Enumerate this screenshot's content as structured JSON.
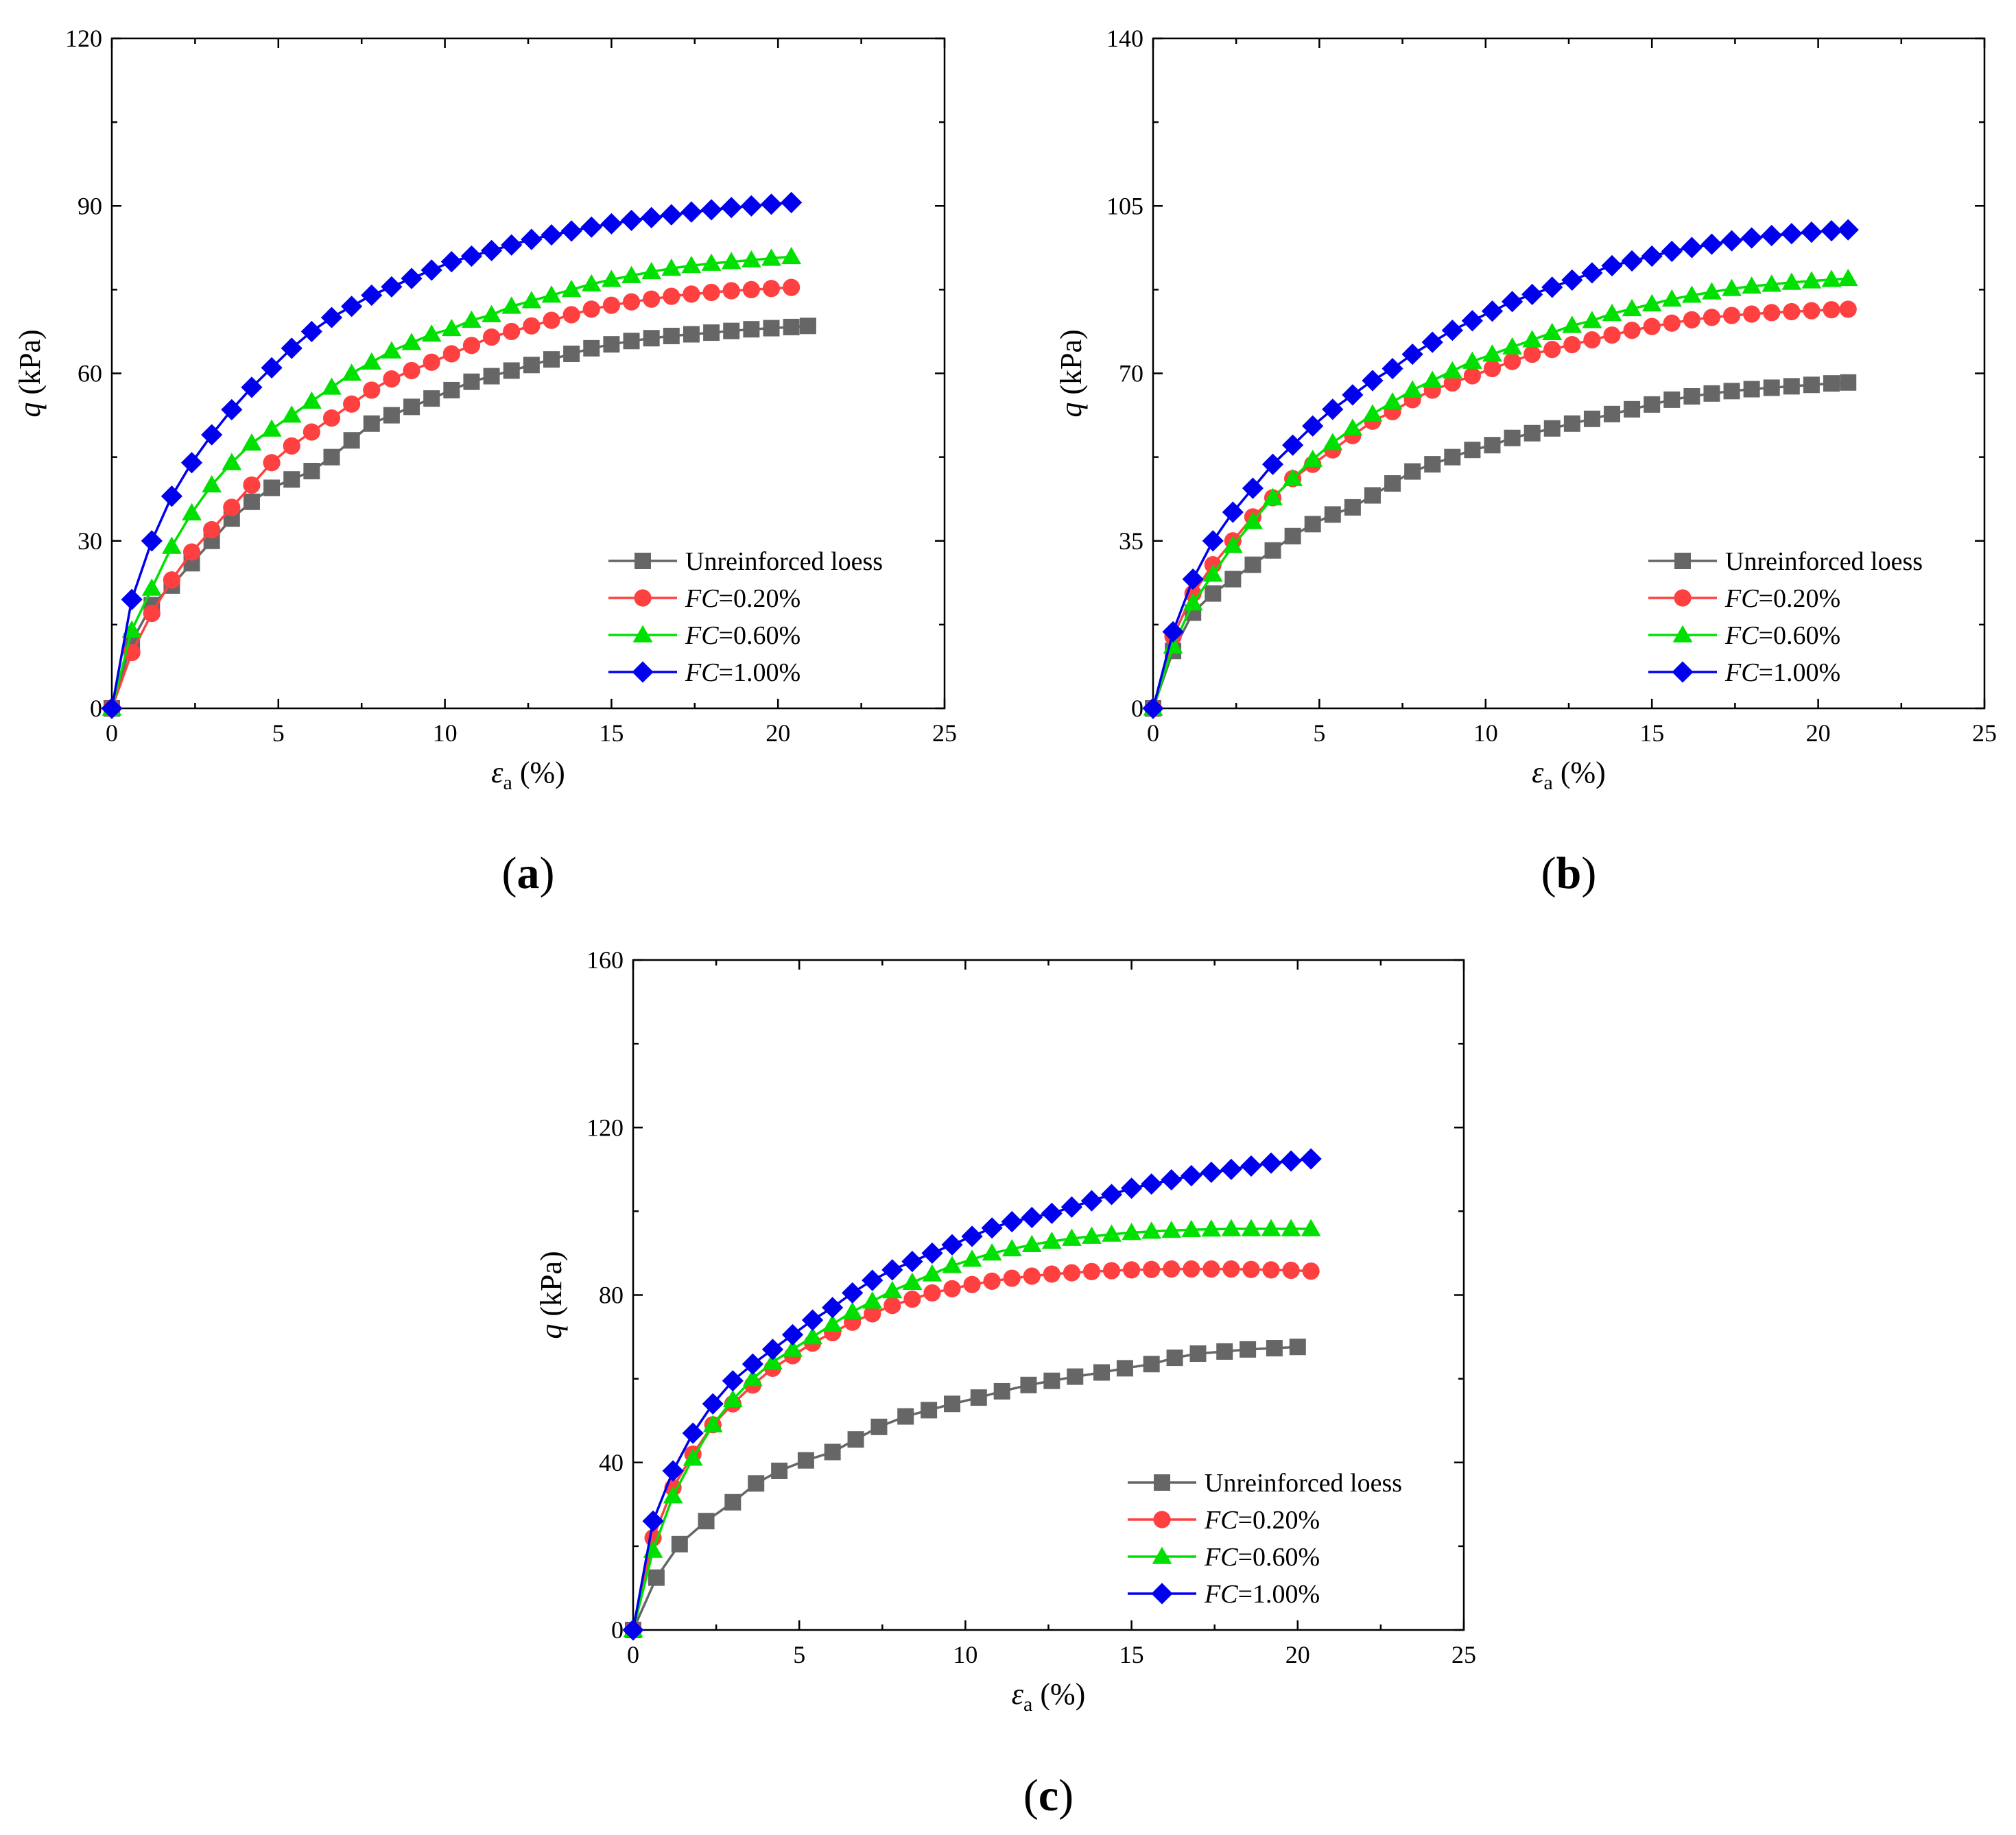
{
  "colors": {
    "unreinforced": "#666666",
    "fc020": "#ff4040",
    "fc060": "#00e000",
    "fc100": "#0000ee"
  },
  "chart_data": [
    {
      "type": "line",
      "panel": "(a)",
      "panel_letter": "a",
      "xlabel_sym": "ε",
      "xlabel_sub": "a",
      "xlabel_unit": " (%)",
      "ylabel_sym": "q",
      "ylabel_unit": " (kPa)",
      "xlim": [
        0,
        25
      ],
      "ylim": [
        0,
        120
      ],
      "xticks": [
        "0",
        "5",
        "10",
        "15",
        "20",
        "25"
      ],
      "yticks": [
        "0",
        "30",
        "60",
        "90",
        "120"
      ],
      "legend_position": "bottom-right",
      "series": [
        {
          "key": "unreinforced",
          "label_italic": "",
          "label": "Unreinforced loess",
          "marker": "square",
          "x": [
            0,
            0.6,
            1.2,
            1.8,
            2.4,
            3.0,
            3.6,
            4.2,
            4.8,
            5.4,
            6.0,
            6.6,
            7.2,
            7.8,
            8.4,
            9.0,
            9.6,
            10.2,
            10.8,
            11.4,
            12.0,
            12.6,
            13.2,
            13.8,
            14.4,
            15.0,
            15.6,
            16.2,
            16.8,
            17.4,
            18.0,
            18.6,
            19.2,
            19.8,
            20.4,
            20.9
          ],
          "y": [
            0,
            12,
            18.5,
            22,
            26,
            30,
            34,
            37,
            39.5,
            41,
            42.5,
            45,
            48,
            51,
            52.5,
            54,
            55.5,
            57,
            58.5,
            59.5,
            60.5,
            61.5,
            62.5,
            63.5,
            64.5,
            65.2,
            65.8,
            66.3,
            66.7,
            67.0,
            67.3,
            67.6,
            67.9,
            68.1,
            68.3,
            68.5
          ]
        },
        {
          "key": "fc020",
          "label_italic": "FC",
          "label": "=0.20%",
          "marker": "circle",
          "x": [
            0,
            0.6,
            1.2,
            1.8,
            2.4,
            3.0,
            3.6,
            4.2,
            4.8,
            5.4,
            6.0,
            6.6,
            7.2,
            7.8,
            8.4,
            9.0,
            9.6,
            10.2,
            10.8,
            11.4,
            12.0,
            12.6,
            13.2,
            13.8,
            14.4,
            15.0,
            15.6,
            16.2,
            16.8,
            17.4,
            18.0,
            18.6,
            19.2,
            19.8,
            20.4
          ],
          "y": [
            0,
            10,
            17,
            23,
            28,
            32,
            36,
            40,
            44,
            47,
            49.5,
            52,
            54.5,
            57,
            59,
            60.5,
            62,
            63.5,
            65,
            66.5,
            67.5,
            68.5,
            69.5,
            70.5,
            71.5,
            72.2,
            72.8,
            73.3,
            73.8,
            74.2,
            74.5,
            74.8,
            75.0,
            75.2,
            75.4
          ]
        },
        {
          "key": "fc060",
          "label_italic": "FC",
          "label": "=0.60%",
          "marker": "triangle",
          "x": [
            0,
            0.6,
            1.2,
            1.8,
            2.4,
            3.0,
            3.6,
            4.2,
            4.8,
            5.4,
            6.0,
            6.6,
            7.2,
            7.8,
            8.4,
            9.0,
            9.6,
            10.2,
            10.8,
            11.4,
            12.0,
            12.6,
            13.2,
            13.8,
            14.4,
            15.0,
            15.6,
            16.2,
            16.8,
            17.4,
            18.0,
            18.6,
            19.2,
            19.8,
            20.4
          ],
          "y": [
            0,
            14,
            21.5,
            29,
            35,
            40,
            44,
            47.5,
            50,
            52.5,
            55,
            57.5,
            60,
            62,
            64,
            65.5,
            67,
            68,
            69.5,
            70.5,
            72,
            73,
            74,
            75,
            76,
            76.8,
            77.5,
            78.2,
            78.8,
            79.3,
            79.7,
            80.0,
            80.3,
            80.6,
            80.9
          ]
        },
        {
          "key": "fc100",
          "label_italic": "FC",
          "label": "=1.00%",
          "marker": "diamond",
          "x": [
            0,
            0.6,
            1.2,
            1.8,
            2.4,
            3.0,
            3.6,
            4.2,
            4.8,
            5.4,
            6.0,
            6.6,
            7.2,
            7.8,
            8.4,
            9.0,
            9.6,
            10.2,
            10.8,
            11.4,
            12.0,
            12.6,
            13.2,
            13.8,
            14.4,
            15.0,
            15.6,
            16.2,
            16.8,
            17.4,
            18.0,
            18.6,
            19.2,
            19.8,
            20.4
          ],
          "y": [
            0,
            19.5,
            30,
            38,
            44,
            49,
            53.5,
            57.5,
            61,
            64.5,
            67.5,
            70,
            72,
            74,
            75.5,
            77,
            78.5,
            80,
            81,
            82,
            83,
            84,
            84.8,
            85.5,
            86.2,
            86.8,
            87.4,
            87.9,
            88.4,
            88.9,
            89.3,
            89.7,
            90.0,
            90.3,
            90.6
          ]
        }
      ]
    },
    {
      "type": "line",
      "panel": "(b)",
      "panel_letter": "b",
      "xlabel_sym": "ε",
      "xlabel_sub": "a",
      "xlabel_unit": " (%)",
      "ylabel_sym": "q",
      "ylabel_unit": " (kPa)",
      "xlim": [
        0,
        25
      ],
      "ylim": [
        0,
        140
      ],
      "xticks": [
        "0",
        "5",
        "10",
        "15",
        "20",
        "25"
      ],
      "yticks": [
        "0",
        "35",
        "70",
        "105",
        "140"
      ],
      "legend_position": "bottom-right",
      "series": [
        {
          "key": "unreinforced",
          "label_italic": "",
          "label": "Unreinforced loess",
          "marker": "square",
          "x": [
            0,
            0.6,
            1.2,
            1.8,
            2.4,
            3.0,
            3.6,
            4.2,
            4.8,
            5.4,
            6.0,
            6.6,
            7.2,
            7.8,
            8.4,
            9.0,
            9.6,
            10.2,
            10.8,
            11.4,
            12.0,
            12.6,
            13.2,
            13.8,
            14.4,
            15.0,
            15.6,
            16.2,
            16.8,
            17.4,
            18.0,
            18.6,
            19.2,
            19.8,
            20.4,
            20.9
          ],
          "y": [
            0,
            12,
            20,
            24,
            27,
            30,
            33,
            36,
            38.5,
            40.5,
            42,
            44.5,
            47,
            49.5,
            51,
            52.5,
            54,
            55,
            56.5,
            57.5,
            58.5,
            59.5,
            60.5,
            61.5,
            62.5,
            63.5,
            64.5,
            65.2,
            65.8,
            66.3,
            66.7,
            67.0,
            67.3,
            67.6,
            67.9,
            68.1
          ]
        },
        {
          "key": "fc020",
          "label_italic": "FC",
          "label": "=0.20%",
          "marker": "circle",
          "x": [
            0,
            0.6,
            1.2,
            1.8,
            2.4,
            3.0,
            3.6,
            4.2,
            4.8,
            5.4,
            6.0,
            6.6,
            7.2,
            7.8,
            8.4,
            9.0,
            9.6,
            10.2,
            10.8,
            11.4,
            12.0,
            12.6,
            13.2,
            13.8,
            14.4,
            15.0,
            15.6,
            16.2,
            16.8,
            17.4,
            18.0,
            18.6,
            19.2,
            19.8,
            20.4,
            20.9
          ],
          "y": [
            0,
            15,
            24,
            30,
            35,
            40,
            44,
            48,
            51,
            54,
            57,
            60,
            62,
            64.5,
            66.5,
            68,
            69.5,
            71,
            72.5,
            74,
            75,
            76,
            77,
            78,
            79,
            79.8,
            80.5,
            81.2,
            81.7,
            82.1,
            82.4,
            82.7,
            82.9,
            83.1,
            83.3,
            83.4
          ]
        },
        {
          "key": "fc060",
          "label_italic": "FC",
          "label": "=0.60%",
          "marker": "triangle",
          "x": [
            0,
            0.6,
            1.2,
            1.8,
            2.4,
            3.0,
            3.6,
            4.2,
            4.8,
            5.4,
            6.0,
            6.6,
            7.2,
            7.8,
            8.4,
            9.0,
            9.6,
            10.2,
            10.8,
            11.4,
            12.0,
            12.6,
            13.2,
            13.8,
            14.4,
            15.0,
            15.6,
            16.2,
            16.8,
            17.4,
            18.0,
            18.6,
            19.2,
            19.8,
            20.4,
            20.9
          ],
          "y": [
            0,
            13,
            22,
            28,
            34,
            39,
            44,
            48,
            52,
            55.5,
            58.5,
            61.5,
            64,
            66.5,
            68.5,
            70.5,
            72.5,
            74,
            75.5,
            77,
            78.5,
            80,
            81,
            82.5,
            83.5,
            84.5,
            85.5,
            86.3,
            87,
            87.7,
            88.2,
            88.6,
            89.0,
            89.3,
            89.6,
            89.8
          ]
        },
        {
          "key": "fc100",
          "label_italic": "FC",
          "label": "=1.00%",
          "marker": "diamond",
          "x": [
            0,
            0.6,
            1.2,
            1.8,
            2.4,
            3.0,
            3.6,
            4.2,
            4.8,
            5.4,
            6.0,
            6.6,
            7.2,
            7.8,
            8.4,
            9.0,
            9.6,
            10.2,
            10.8,
            11.4,
            12.0,
            12.6,
            13.2,
            13.8,
            14.4,
            15.0,
            15.6,
            16.2,
            16.8,
            17.4,
            18.0,
            18.6,
            19.2,
            19.8,
            20.4,
            20.9
          ],
          "y": [
            0,
            16,
            27,
            35,
            41,
            46,
            51,
            55,
            59,
            62.5,
            65.5,
            68.5,
            71,
            74,
            76.5,
            79,
            81,
            83,
            85,
            86.5,
            88,
            89.5,
            91,
            92.5,
            93.5,
            94.5,
            95.5,
            96.3,
            97,
            97.7,
            98.3,
            98.8,
            99.2,
            99.5,
            99.8,
            100.0
          ]
        }
      ]
    },
    {
      "type": "line",
      "panel": "(c)",
      "panel_letter": "c",
      "xlabel_sym": "ε",
      "xlabel_sub": "a",
      "xlabel_unit": " (%)",
      "ylabel_sym": "q",
      "ylabel_unit": " (kPa)",
      "xlim": [
        0,
        25
      ],
      "ylim": [
        0,
        160
      ],
      "xticks": [
        "0",
        "5",
        "10",
        "15",
        "20",
        "25"
      ],
      "yticks": [
        "0",
        "40",
        "80",
        "120",
        "160"
      ],
      "legend_position": "bottom-right",
      "series": [
        {
          "key": "unreinforced",
          "label_italic": "",
          "label": "Unreinforced loess",
          "marker": "square",
          "x": [
            0,
            0.7,
            1.4,
            2.2,
            3.0,
            3.7,
            4.4,
            5.2,
            6.0,
            6.7,
            7.4,
            8.2,
            8.9,
            9.6,
            10.4,
            11.1,
            11.9,
            12.6,
            13.3,
            14.1,
            14.8,
            15.6,
            16.3,
            17.0,
            17.8,
            18.5,
            19.3,
            20.0
          ],
          "y": [
            0,
            12.5,
            20.5,
            26,
            30.5,
            35,
            38,
            40.5,
            42.5,
            45.5,
            48.5,
            51,
            52.5,
            54,
            55.5,
            57,
            58.5,
            59.5,
            60.5,
            61.5,
            62.5,
            63.5,
            65,
            66,
            66.5,
            67,
            67.3,
            67.6
          ]
        },
        {
          "key": "fc020",
          "label_italic": "FC",
          "label": "=0.20%",
          "marker": "circle",
          "x": [
            0,
            0.6,
            1.2,
            1.8,
            2.4,
            3.0,
            3.6,
            4.2,
            4.8,
            5.4,
            6.0,
            6.6,
            7.2,
            7.8,
            8.4,
            9.0,
            9.6,
            10.2,
            10.8,
            11.4,
            12.0,
            12.6,
            13.2,
            13.8,
            14.4,
            15.0,
            15.6,
            16.2,
            16.8,
            17.4,
            18.0,
            18.6,
            19.2,
            19.8,
            20.4
          ],
          "y": [
            0,
            22,
            34,
            42,
            49,
            54,
            58.5,
            62.5,
            65.5,
            68.5,
            71,
            73.5,
            75.5,
            77.5,
            79,
            80.5,
            81.5,
            82.5,
            83.3,
            84,
            84.5,
            85,
            85.3,
            85.6,
            85.8,
            86,
            86.1,
            86.2,
            86.2,
            86.2,
            86.2,
            86.1,
            86.0,
            85.9,
            85.7
          ]
        },
        {
          "key": "fc060",
          "label_italic": "FC",
          "label": "=0.60%",
          "marker": "triangle",
          "x": [
            0,
            0.6,
            1.2,
            1.8,
            2.4,
            3.0,
            3.6,
            4.2,
            4.8,
            5.4,
            6.0,
            6.6,
            7.2,
            7.8,
            8.4,
            9.0,
            9.6,
            10.2,
            10.8,
            11.4,
            12.0,
            12.6,
            13.2,
            13.8,
            14.4,
            15.0,
            15.6,
            16.2,
            16.8,
            17.4,
            18.0,
            18.6,
            19.2,
            19.8,
            20.4
          ],
          "y": [
            0,
            19,
            32,
            41,
            49,
            55,
            60,
            64,
            67,
            70,
            73,
            76,
            78.5,
            81,
            83,
            85,
            87,
            88.5,
            90,
            91,
            92,
            92.8,
            93.5,
            94,
            94.5,
            94.9,
            95.2,
            95.4,
            95.6,
            95.7,
            95.8,
            95.8,
            95.8,
            95.8,
            95.8
          ]
        },
        {
          "key": "fc100",
          "label_italic": "FC",
          "label": "=1.00%",
          "marker": "diamond",
          "x": [
            0,
            0.6,
            1.2,
            1.8,
            2.4,
            3.0,
            3.6,
            4.2,
            4.8,
            5.4,
            6.0,
            6.6,
            7.2,
            7.8,
            8.4,
            9.0,
            9.6,
            10.2,
            10.8,
            11.4,
            12.0,
            12.6,
            13.2,
            13.8,
            14.4,
            15.0,
            15.6,
            16.2,
            16.8,
            17.4,
            18.0,
            18.6,
            19.2,
            19.8,
            20.4
          ],
          "y": [
            0,
            26,
            38,
            47,
            54,
            59.5,
            63.5,
            67,
            70.5,
            74,
            77,
            80.5,
            83.5,
            86,
            88,
            90,
            92,
            94,
            96,
            97.5,
            98.5,
            99.5,
            101,
            102.5,
            104,
            105.5,
            106.5,
            107.5,
            108.5,
            109.3,
            110,
            110.8,
            111.5,
            112,
            112.5
          ]
        }
      ]
    }
  ]
}
